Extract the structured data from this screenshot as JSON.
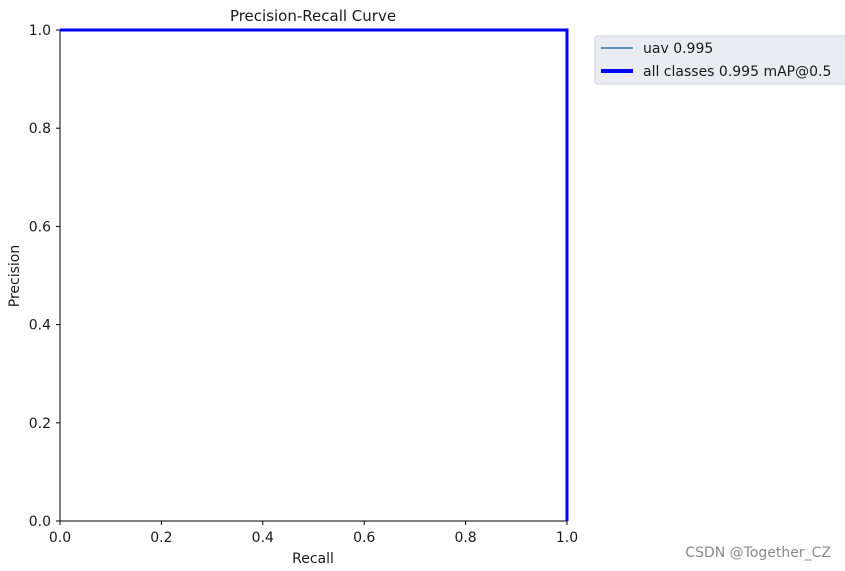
{
  "chart_data": {
    "type": "line",
    "title": "Precision-Recall Curve",
    "xlabel": "Recall",
    "ylabel": "Precision",
    "xlim": [
      0,
      1
    ],
    "ylim": [
      0,
      1
    ],
    "xticks": [
      "0.0",
      "0.2",
      "0.4",
      "0.6",
      "0.8",
      "1.0"
    ],
    "yticks": [
      "0.0",
      "0.2",
      "0.4",
      "0.6",
      "0.8",
      "1.0"
    ],
    "grid": false,
    "legend_position": "outside-top-right",
    "series": [
      {
        "name": "uav 0.995",
        "color": "#1f77b4",
        "x": [
          0,
          1,
          1
        ],
        "y": [
          1,
          1,
          0
        ]
      },
      {
        "name": "all classes 0.995 mAP@0.5",
        "color": "#0000ff",
        "x": [
          0,
          1,
          1
        ],
        "y": [
          1,
          1,
          0
        ]
      }
    ]
  },
  "watermark": "CSDN @Together_CZ"
}
